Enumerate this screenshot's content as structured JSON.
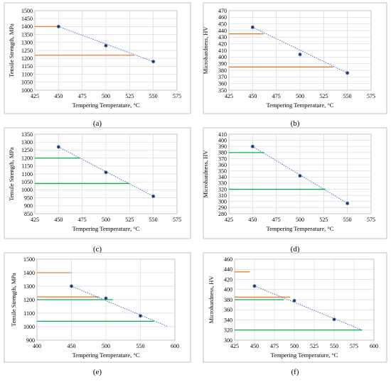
{
  "chart_data": [
    {
      "id": "a",
      "type": "scatter",
      "panel_label": "(a)",
      "xlabel": "Tempering Temperature, °C",
      "ylabel": "Tensile Strength, MPa",
      "xlim": [
        425,
        575
      ],
      "xticks": [
        425,
        450,
        475,
        500,
        525,
        550,
        575
      ],
      "ylim": [
        1000,
        1500
      ],
      "yticks": [
        1000,
        1050,
        1100,
        1150,
        1200,
        1250,
        1300,
        1350,
        1400,
        1450,
        1500
      ],
      "grid": true,
      "points": [
        [
          450,
          1400
        ],
        [
          500,
          1280
        ],
        [
          550,
          1180
        ]
      ],
      "trendline": [
        [
          450,
          1400
        ],
        [
          550,
          1180
        ]
      ],
      "hlines": [
        {
          "y": 1400,
          "x": [
            425,
            450
          ],
          "color": "#ed7d31"
        },
        {
          "y": 1220,
          "x": [
            425,
            530
          ],
          "color": "#ed7d31"
        }
      ]
    },
    {
      "id": "b",
      "type": "scatter",
      "panel_label": "(b)",
      "xlabel": "Tempering Temperature, °C",
      "ylabel": "Microhardness, HV",
      "xlim": [
        425,
        575
      ],
      "xticks": [
        425,
        450,
        475,
        500,
        525,
        550,
        575
      ],
      "ylim": [
        350,
        470
      ],
      "yticks": [
        350,
        360,
        370,
        380,
        390,
        400,
        410,
        420,
        430,
        440,
        450,
        460,
        470
      ],
      "grid": true,
      "points": [
        [
          450,
          445
        ],
        [
          500,
          404
        ],
        [
          550,
          376
        ]
      ],
      "trendline": [
        [
          450,
          445
        ],
        [
          550,
          376
        ]
      ],
      "hlines": [
        {
          "y": 435,
          "x": [
            425,
            462
          ],
          "color": "#ed7d31"
        },
        {
          "y": 385,
          "x": [
            425,
            535
          ],
          "color": "#ed7d31"
        }
      ]
    },
    {
      "id": "c",
      "type": "scatter",
      "panel_label": "(c)",
      "xlabel": "Tempering Temperature, °C",
      "ylabel": "Tensile Strength, MPa",
      "xlim": [
        425,
        575
      ],
      "xticks": [
        425,
        450,
        475,
        500,
        525,
        550,
        575
      ],
      "ylim": [
        850,
        1350
      ],
      "yticks": [
        850,
        900,
        950,
        1000,
        1050,
        1100,
        1150,
        1200,
        1250,
        1300,
        1350
      ],
      "grid": true,
      "points": [
        [
          450,
          1270
        ],
        [
          500,
          1110
        ],
        [
          550,
          960
        ]
      ],
      "trendline": [
        [
          450,
          1270
        ],
        [
          550,
          960
        ]
      ],
      "hlines": [
        {
          "y": 1200,
          "x": [
            425,
            473
          ],
          "color": "#00b050"
        },
        {
          "y": 1040,
          "x": [
            425,
            525
          ],
          "color": "#00b050"
        }
      ]
    },
    {
      "id": "d",
      "type": "scatter",
      "panel_label": "(d)",
      "xlabel": "Tempering Temperature, °C",
      "ylabel": "Microhardness, HV",
      "xlim": [
        425,
        575
      ],
      "xticks": [
        425,
        450,
        475,
        500,
        525,
        550,
        575
      ],
      "ylim": [
        280,
        410
      ],
      "yticks": [
        280,
        290,
        300,
        310,
        320,
        330,
        340,
        350,
        360,
        370,
        380,
        390,
        400,
        410
      ],
      "grid": true,
      "points": [
        [
          450,
          390
        ],
        [
          500,
          342
        ],
        [
          550,
          297
        ]
      ],
      "trendline": [
        [
          450,
          390
        ],
        [
          550,
          297
        ]
      ],
      "hlines": [
        {
          "y": 380,
          "x": [
            425,
            462
          ],
          "color": "#00b050"
        },
        {
          "y": 320,
          "x": [
            425,
            527
          ],
          "color": "#00b050"
        }
      ]
    },
    {
      "id": "e",
      "type": "scatter",
      "panel_label": "(e)",
      "xlabel": "Tempering Temperature, °C",
      "ylabel": "Tensile Strength, MPa",
      "xlim": [
        400,
        600
      ],
      "xticks": [
        400,
        450,
        500,
        550,
        600
      ],
      "ylim": [
        900,
        1500
      ],
      "yticks": [
        900,
        1000,
        1100,
        1200,
        1300,
        1400,
        1500
      ],
      "grid": true,
      "points": [
        [
          450,
          1300
        ],
        [
          500,
          1210
        ],
        [
          550,
          1080
        ]
      ],
      "trendline": [
        [
          450,
          1300
        ],
        [
          590,
          1000
        ]
      ],
      "hlines": [
        {
          "y": 1400,
          "x": [
            400,
            450
          ],
          "color": "#ed7d31"
        },
        {
          "y": 1220,
          "x": [
            400,
            490
          ],
          "color": "#ed7d31"
        },
        {
          "y": 1200,
          "x": [
            400,
            510
          ],
          "color": "#00b050"
        },
        {
          "y": 1040,
          "x": [
            400,
            570
          ],
          "color": "#00b050"
        }
      ]
    },
    {
      "id": "f",
      "type": "scatter",
      "panel_label": "(f)",
      "xlabel": "Tempering Temperature, °C",
      "ylabel": "Microhardness, HV",
      "xlim": [
        425,
        600
      ],
      "xticks": [
        425,
        450,
        475,
        500,
        525,
        550,
        575,
        600
      ],
      "ylim": [
        300,
        460
      ],
      "yticks": [
        300,
        320,
        340,
        360,
        380,
        400,
        420,
        440,
        460
      ],
      "grid": true,
      "points": [
        [
          450,
          407
        ],
        [
          500,
          378
        ],
        [
          550,
          341
        ]
      ],
      "trendline": [
        [
          450,
          407
        ],
        [
          585,
          320
        ]
      ],
      "hlines": [
        {
          "y": 435,
          "x": [
            425,
            444
          ],
          "color": "#ed7d31"
        },
        {
          "y": 385,
          "x": [
            425,
            495
          ],
          "color": "#ed7d31"
        },
        {
          "y": 380,
          "x": [
            425,
            487
          ],
          "color": "#00b050"
        },
        {
          "y": 320,
          "x": [
            425,
            585
          ],
          "color": "#00b050"
        }
      ]
    }
  ]
}
